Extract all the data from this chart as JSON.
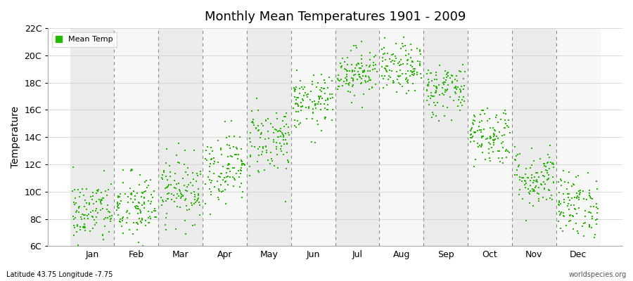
{
  "title": "Monthly Mean Temperatures 1901 - 2009",
  "ylabel": "Temperature",
  "subtitle_left": "Latitude 43.75 Longitude -7.75",
  "subtitle_right": "worldspecies.org",
  "marker_color": "#22bb00",
  "marker_size": 3,
  "background_color": "#ffffff",
  "band_color_odd": "#ebebeb",
  "band_color_even": "#f7f7f7",
  "yticks": [
    6,
    8,
    10,
    12,
    14,
    16,
    18,
    20,
    22
  ],
  "ytick_labels": [
    "6C",
    "8C",
    "10C",
    "12C",
    "14C",
    "16C",
    "18C",
    "20C",
    "22C"
  ],
  "months": [
    "Jan",
    "Feb",
    "Mar",
    "Apr",
    "May",
    "Jun",
    "Jul",
    "Aug",
    "Sep",
    "Oct",
    "Nov",
    "Dec"
  ],
  "monthly_means": [
    8.5,
    8.8,
    10.2,
    11.8,
    13.8,
    16.5,
    18.8,
    19.0,
    17.5,
    14.2,
    11.0,
    9.0
  ],
  "monthly_stds": [
    1.2,
    1.3,
    1.2,
    1.3,
    1.3,
    1.0,
    0.9,
    0.9,
    1.0,
    1.1,
    1.1,
    1.2
  ],
  "n_years": 109,
  "random_seed": 42,
  "ylim": [
    6,
    22
  ],
  "xlim_start": -0.5,
  "xlim_end": 12.5
}
